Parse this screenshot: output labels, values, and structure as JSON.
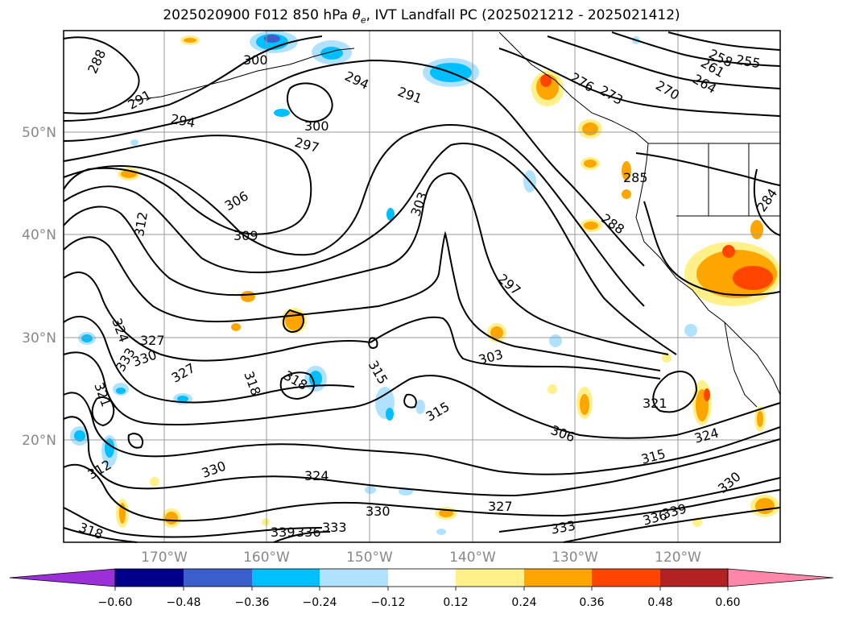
{
  "title_prefix": "2025020900 F012 850 hPa ",
  "title_symbol": "θ",
  "title_symbol_sub": "e",
  "title_suffix": ", IVT Landfall PC (2025021212 - 2025021412)",
  "lat_labels": [
    "50°N",
    "40°N",
    "30°N",
    "20°N"
  ],
  "lon_labels": [
    "170°W",
    "160°W",
    "150°W",
    "140°W",
    "130°W",
    "120°W"
  ],
  "contour_labels": [
    "288",
    "291",
    "294",
    "300",
    "294",
    "291",
    "297",
    "300",
    "306",
    "309",
    "312",
    "303",
    "297",
    "303",
    "285",
    "288",
    "276",
    "273",
    "270",
    "264",
    "261",
    "258",
    "255",
    "284",
    "324",
    "327",
    "330",
    "333",
    "327",
    "321",
    "318",
    "318",
    "315",
    "315",
    "306",
    "321",
    "315",
    "324",
    "330",
    "324",
    "330",
    "327",
    "333",
    "336",
    "339",
    "330",
    "339",
    "336",
    "333",
    "318",
    "312"
  ],
  "colorbar": {
    "ticks": [
      "−0.60",
      "−0.48",
      "−0.36",
      "−0.24",
      "−0.12",
      "0.12",
      "0.24",
      "0.36",
      "0.48",
      "0.60"
    ],
    "colors": [
      "#9b30d9",
      "#00008b",
      "#3a5fcd",
      "#00bfff",
      "#b0e2ff",
      "#ffffff",
      "#fff08a",
      "#ffa500",
      "#ff4500",
      "#b22222",
      "#ff88aa"
    ]
  }
}
